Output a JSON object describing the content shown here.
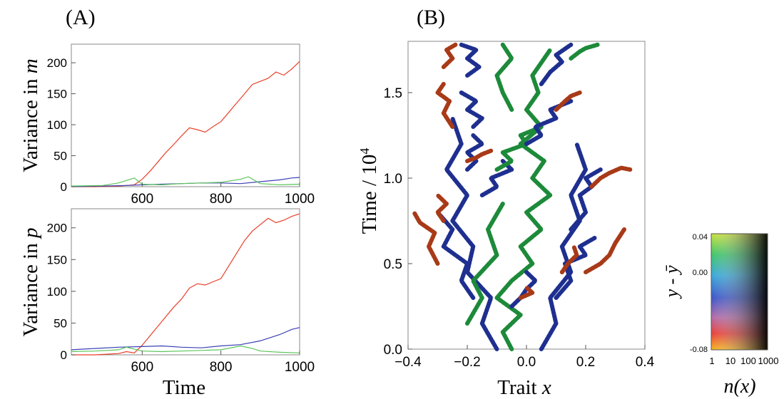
{
  "panel_labels": [
    "(A)",
    "(B)"
  ],
  "colors": {
    "red": "#e8402a",
    "blue": "#3b3fb5",
    "green": "#5cc65a",
    "dark_red": "#a83a18",
    "navy": "#1e2f8f",
    "green_dark": "#1d8a3a"
  },
  "chart_data": [
    {
      "type": "line",
      "ylabel_text": "Variance in ",
      "ylabel_var": "m",
      "xlabel": "",
      "xlim": [
        420,
        1000
      ],
      "ylim": [
        0,
        230
      ],
      "xticks": [
        600,
        800,
        1000
      ],
      "yticks": [
        0,
        50,
        100,
        150,
        200
      ],
      "series": [
        {
          "color": "red",
          "x": [
            420,
            480,
            540,
            560,
            580,
            600,
            620,
            640,
            660,
            680,
            700,
            720,
            740,
            760,
            780,
            800,
            820,
            840,
            860,
            880,
            900,
            920,
            940,
            960,
            980,
            1000
          ],
          "y": [
            0,
            0,
            1,
            2,
            3,
            12,
            25,
            40,
            55,
            68,
            82,
            95,
            92,
            88,
            97,
            105,
            120,
            135,
            150,
            165,
            170,
            175,
            185,
            180,
            190,
            202
          ]
        },
        {
          "color": "blue",
          "x": [
            420,
            500,
            560,
            600,
            650,
            700,
            750,
            800,
            850,
            900,
            950,
            980,
            1000
          ],
          "y": [
            0,
            1,
            2,
            3,
            4,
            5,
            6,
            6,
            5,
            8,
            11,
            14,
            15
          ]
        },
        {
          "color": "green",
          "x": [
            420,
            500,
            540,
            560,
            580,
            600,
            650,
            700,
            750,
            800,
            850,
            870,
            900,
            950,
            1000
          ],
          "y": [
            1,
            2,
            6,
            10,
            14,
            4,
            3,
            5,
            6,
            7,
            12,
            16,
            5,
            3,
            4
          ]
        }
      ]
    },
    {
      "type": "line",
      "ylabel_text": "Variance in ",
      "ylabel_var": "p",
      "xlabel": "Time",
      "xlim": [
        420,
        1000
      ],
      "ylim": [
        0,
        230
      ],
      "xticks": [
        600,
        800,
        1000
      ],
      "yticks": [
        0,
        50,
        100,
        150,
        200
      ],
      "series": [
        {
          "color": "red",
          "x": [
            420,
            480,
            540,
            560,
            580,
            600,
            620,
            640,
            660,
            680,
            700,
            720,
            740,
            760,
            780,
            800,
            820,
            840,
            860,
            880,
            900,
            920,
            940,
            960,
            980,
            1000
          ],
          "y": [
            0,
            0,
            2,
            5,
            3,
            15,
            30,
            45,
            60,
            75,
            88,
            105,
            112,
            110,
            115,
            120,
            140,
            160,
            180,
            195,
            205,
            215,
            208,
            212,
            218,
            222
          ]
        },
        {
          "color": "blue",
          "x": [
            420,
            480,
            540,
            600,
            650,
            700,
            750,
            800,
            850,
            900,
            950,
            980,
            1000
          ],
          "y": [
            8,
            10,
            12,
            13,
            14,
            12,
            11,
            14,
            16,
            22,
            32,
            40,
            43
          ]
        },
        {
          "color": "green",
          "x": [
            420,
            480,
            540,
            560,
            600,
            650,
            700,
            750,
            800,
            850,
            880,
            900,
            950,
            1000
          ],
          "y": [
            5,
            6,
            8,
            12,
            6,
            5,
            6,
            7,
            8,
            14,
            10,
            6,
            4,
            3
          ]
        }
      ]
    },
    {
      "type": "scatter",
      "xlabel_text": "Trait ",
      "xlabel_var": "x",
      "ylabel_text": "Time / 10",
      "ylabel_sup": "4",
      "xlim": [
        -0.4,
        0.4
      ],
      "ylim": [
        0.0,
        1.8
      ],
      "xticks": [
        "−0.4",
        "−0.2",
        "0.0",
        "0.2",
        "0.4"
      ],
      "yticks": [
        "0.0",
        "0.5",
        "1.0",
        "1.5"
      ],
      "lineages": [
        {
          "color": "green_dark",
          "x": [
            -0.05,
            -0.08,
            -0.02,
            -0.1,
            -0.05,
            0.02,
            -0.02,
            0.05,
            0.0,
            0.08,
            0.02,
            0.06,
            -0.02,
            0.05,
            0.0,
            0.04,
            0.02,
            0.08
          ],
          "y": [
            0.0,
            0.1,
            0.2,
            0.3,
            0.4,
            0.5,
            0.6,
            0.7,
            0.8,
            0.9,
            1.0,
            1.1,
            1.2,
            1.3,
            1.4,
            1.5,
            1.6,
            1.75
          ]
        },
        {
          "color": "navy",
          "x": [
            -0.1,
            -0.15,
            -0.12,
            -0.2,
            -0.18,
            -0.25,
            -0.2,
            -0.27,
            -0.22,
            -0.25
          ],
          "y": [
            0.0,
            0.15,
            0.3,
            0.45,
            0.6,
            0.75,
            0.9,
            1.05,
            1.2,
            1.35
          ]
        },
        {
          "color": "navy",
          "x": [
            0.05,
            0.1,
            0.08,
            0.15,
            0.12,
            0.18,
            0.15,
            0.2,
            0.17
          ],
          "y": [
            0.0,
            0.15,
            0.3,
            0.45,
            0.6,
            0.75,
            0.9,
            1.05,
            1.2
          ]
        },
        {
          "color": "green_dark",
          "x": [
            -0.2,
            -0.15,
            -0.18,
            -0.1,
            -0.13,
            -0.08
          ],
          "y": [
            0.15,
            0.3,
            0.4,
            0.55,
            0.7,
            0.85
          ]
        },
        {
          "color": "navy",
          "x": [
            -0.18,
            -0.22,
            -0.2,
            -0.28,
            -0.25,
            -0.3
          ],
          "y": [
            0.3,
            0.4,
            0.5,
            0.6,
            0.7,
            0.8
          ]
        },
        {
          "color": "dark_red",
          "x": [
            -0.3,
            -0.33,
            -0.31,
            -0.36,
            -0.38
          ],
          "y": [
            0.5,
            0.6,
            0.68,
            0.74,
            0.8
          ]
        },
        {
          "color": "dark_red",
          "x": [
            -0.28,
            -0.3,
            -0.27,
            -0.3
          ],
          "y": [
            0.75,
            0.8,
            0.85,
            0.9
          ]
        },
        {
          "color": "navy",
          "x": [
            -0.05,
            -0.02,
            0.0,
            0.03,
            0.0
          ],
          "y": [
            0.25,
            0.3,
            0.35,
            0.4,
            0.45
          ]
        },
        {
          "color": "dark_red",
          "x": [
            -0.02,
            0.02,
            0.0
          ],
          "y": [
            0.3,
            0.33,
            0.36
          ]
        },
        {
          "color": "navy",
          "x": [
            0.1,
            0.15,
            0.13,
            0.2,
            0.18,
            0.23
          ],
          "y": [
            0.3,
            0.4,
            0.5,
            0.55,
            0.6,
            0.65
          ]
        },
        {
          "color": "dark_red",
          "x": [
            0.2,
            0.25,
            0.28,
            0.3,
            0.33
          ],
          "y": [
            0.45,
            0.5,
            0.55,
            0.62,
            0.7
          ]
        },
        {
          "color": "dark_red",
          "x": [
            0.12,
            0.14,
            0.17,
            0.16
          ],
          "y": [
            0.45,
            0.5,
            0.55,
            0.6
          ]
        },
        {
          "color": "navy",
          "x": [
            0.15,
            0.2,
            0.18,
            0.22,
            0.2,
            0.25
          ],
          "y": [
            0.7,
            0.8,
            0.9,
            0.95,
            1.0,
            1.05
          ]
        },
        {
          "color": "dark_red",
          "x": [
            0.22,
            0.25,
            0.28,
            0.32,
            0.35
          ],
          "y": [
            0.95,
            1.0,
            1.03,
            1.06,
            1.05
          ]
        },
        {
          "color": "navy",
          "x": [
            -0.15,
            -0.1,
            -0.12,
            -0.05,
            -0.08
          ],
          "y": [
            0.9,
            0.95,
            1.0,
            1.05,
            1.1
          ]
        },
        {
          "color": "green_dark",
          "x": [
            -0.1,
            -0.05,
            -0.08,
            0.0,
            -0.02,
            0.05
          ],
          "y": [
            1.05,
            1.1,
            1.15,
            1.2,
            1.25,
            1.3
          ]
        },
        {
          "color": "navy",
          "x": [
            -0.2,
            -0.17,
            -0.2,
            -0.15,
            -0.18
          ],
          "y": [
            1.05,
            1.1,
            1.15,
            1.2,
            1.25
          ]
        },
        {
          "color": "dark_red",
          "x": [
            -0.2,
            -0.17,
            -0.15,
            -0.12
          ],
          "y": [
            1.1,
            1.12,
            1.14,
            1.16
          ]
        },
        {
          "color": "navy",
          "x": [
            0.0,
            0.05,
            0.03,
            0.1,
            0.08,
            0.15
          ],
          "y": [
            1.2,
            1.25,
            1.3,
            1.35,
            1.4,
            1.45
          ]
        },
        {
          "color": "dark_red",
          "x": [
            0.1,
            0.13,
            0.15,
            0.18
          ],
          "y": [
            1.4,
            1.45,
            1.48,
            1.5
          ]
        },
        {
          "color": "navy",
          "x": [
            -0.18,
            -0.15,
            -0.2,
            -0.17,
            -0.22
          ],
          "y": [
            1.3,
            1.35,
            1.4,
            1.45,
            1.5
          ]
        },
        {
          "color": "dark_red",
          "x": [
            -0.25,
            -0.28,
            -0.26,
            -0.3,
            -0.28
          ],
          "y": [
            1.3,
            1.38,
            1.45,
            1.5,
            1.55
          ]
        },
        {
          "color": "green_dark",
          "x": [
            -0.05,
            -0.08,
            -0.1,
            -0.05,
            -0.08
          ],
          "y": [
            1.4,
            1.5,
            1.6,
            1.7,
            1.78
          ]
        },
        {
          "color": "navy",
          "x": [
            0.05,
            0.08,
            0.12,
            0.1,
            0.15
          ],
          "y": [
            1.55,
            1.62,
            1.68,
            1.72,
            1.78
          ]
        },
        {
          "color": "navy",
          "x": [
            -0.2,
            -0.16,
            -0.2,
            -0.17,
            -0.22
          ],
          "y": [
            1.6,
            1.65,
            1.7,
            1.75,
            1.78
          ]
        },
        {
          "color": "dark_red",
          "x": [
            -0.28,
            -0.25,
            -0.27,
            -0.24
          ],
          "y": [
            1.65,
            1.7,
            1.75,
            1.78
          ]
        },
        {
          "color": "green_dark",
          "x": [
            0.15,
            0.18,
            0.2,
            0.24
          ],
          "y": [
            1.7,
            1.74,
            1.76,
            1.78
          ]
        }
      ]
    }
  ],
  "colorbar": {
    "ylabel": "y - ȳ",
    "xlabel": "n(x)",
    "yticks": [
      "0.04",
      "0.00",
      "-0.08"
    ],
    "xticks": [
      "1",
      "10",
      "100",
      "1000"
    ]
  }
}
